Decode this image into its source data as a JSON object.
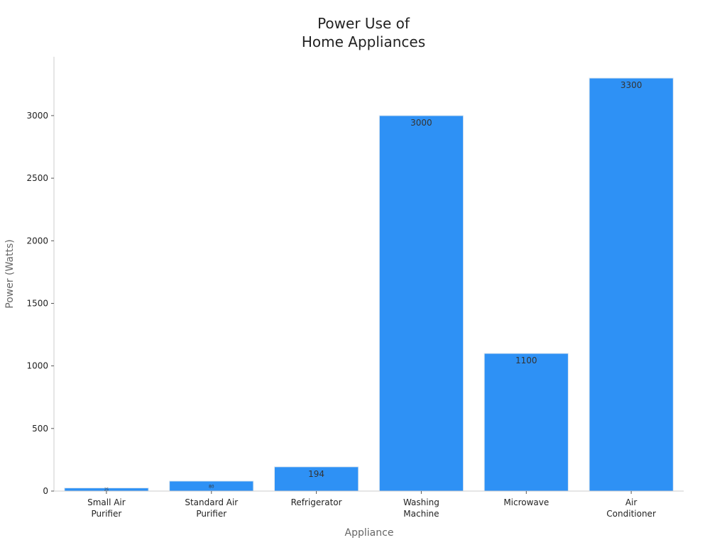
{
  "chart_data": {
    "type": "bar",
    "title": [
      "Power Use of",
      "Home Appliances"
    ],
    "xlabel": "Appliance",
    "ylabel": "Power (Watts)",
    "categories": [
      [
        "Small Air",
        "Purifier"
      ],
      [
        "Standard Air",
        "Purifier"
      ],
      [
        "Refrigerator"
      ],
      [
        "Washing",
        "Machine"
      ],
      [
        "Microwave"
      ],
      [
        "Air",
        "Conditioner"
      ]
    ],
    "values": [
      25,
      80,
      194,
      3000,
      1100,
      3300
    ],
    "data_labels": [
      "25",
      "80",
      "194",
      "3000",
      "1100",
      "3300"
    ],
    "ylim": [
      0,
      3450
    ],
    "yticks": [
      0,
      500,
      1000,
      1500,
      2000,
      2500,
      3000
    ],
    "grid": false,
    "bar_color": "#2e91f5",
    "bar_edge_color": "#dfe8f0"
  }
}
